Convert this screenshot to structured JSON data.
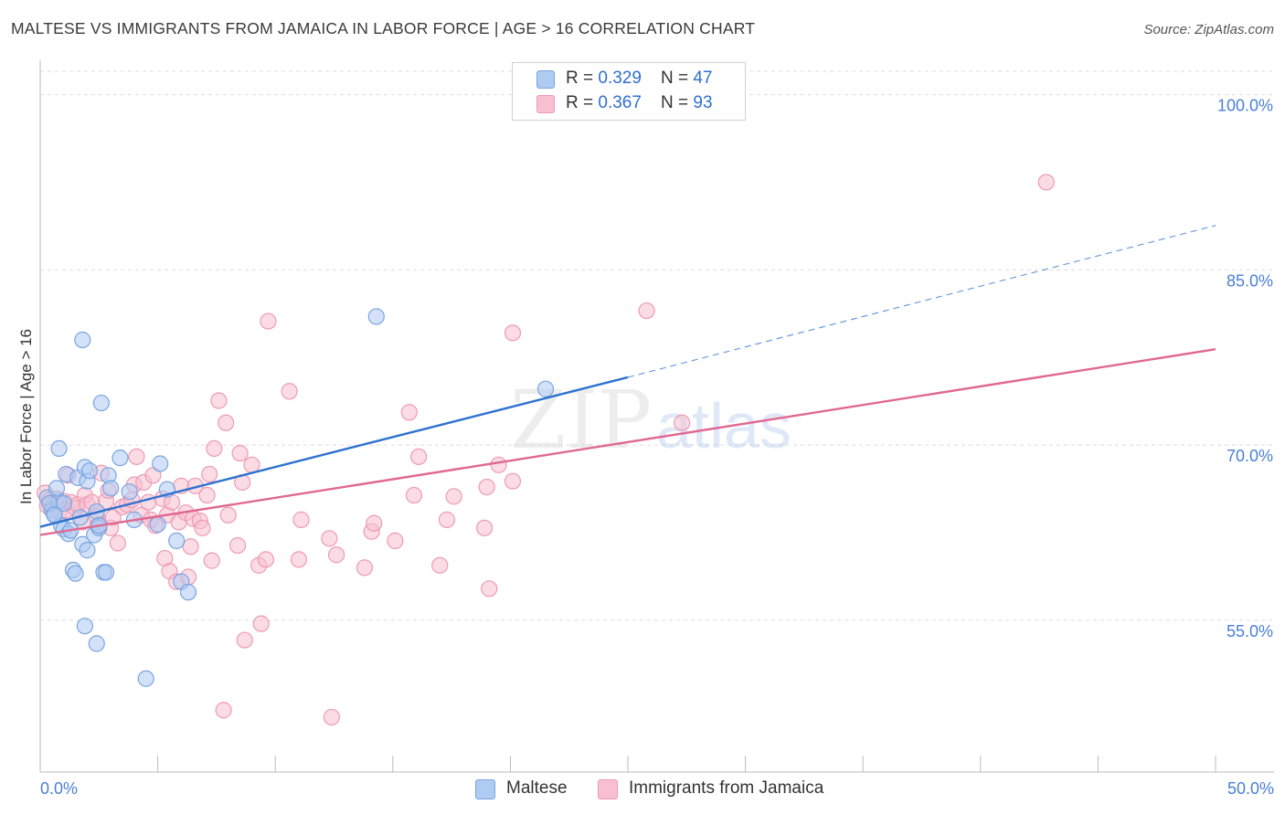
{
  "header": {
    "title": "MALTESE VS IMMIGRANTS FROM JAMAICA IN LABOR FORCE | AGE > 16 CORRELATION CHART",
    "source": "Source: ZipAtlas.com"
  },
  "legend": {
    "maltese": {
      "r_label": "R = ",
      "r_value": "0.329",
      "n_label": "N = ",
      "n_value": "47"
    },
    "jamaica": {
      "r_label": "R = ",
      "r_value": "0.367",
      "n_label": "N = ",
      "n_value": "93"
    }
  },
  "bottom_legend": {
    "maltese": "Maltese",
    "jamaica": "Immigrants from Jamaica"
  },
  "watermark": {
    "zip": "ZIP",
    "atlas": "atlas"
  },
  "colors": {
    "maltese_fill": "#aecbf2",
    "maltese_stroke": "#7aa5e0",
    "maltese_line": "#2f72d0",
    "jamaica_fill": "#f7bfd0",
    "jamaica_stroke": "#ee9ab3",
    "jamaica_line": "#e06890",
    "tick_label": "#4a7fd6",
    "grid": "#dddddd"
  },
  "chart_data": {
    "type": "scatter",
    "title": "MALTESE VS IMMIGRANTS FROM JAMAICA IN LABOR FORCE | AGE > 16 CORRELATION CHART",
    "xlabel": "",
    "ylabel": "In Labor Force | Age > 16",
    "xlim": [
      0,
      50
    ],
    "ylim": [
      42,
      102
    ],
    "x_tick_labels": [
      "0.0%",
      "50.0%"
    ],
    "y_ticks": [
      55,
      70,
      85,
      100
    ],
    "y_tick_labels": [
      "55.0%",
      "70.0%",
      "85.0%",
      "100.0%"
    ],
    "grid": true,
    "legend_position": "top-center",
    "series": [
      {
        "name": "Maltese",
        "R": 0.329,
        "N": 47,
        "trend": {
          "x0": 0,
          "y0": 63.0,
          "x1": 25,
          "y1": 75.8,
          "dashed_to_x": 50,
          "dashed_to_y": 88.8
        },
        "points": [
          [
            0.3,
            65.5
          ],
          [
            0.5,
            64.4
          ],
          [
            0.6,
            64.1
          ],
          [
            0.8,
            65.2
          ],
          [
            0.4,
            65.0
          ],
          [
            0.7,
            66.3
          ],
          [
            0.9,
            63.1
          ],
          [
            1.0,
            62.8
          ],
          [
            1.1,
            67.5
          ],
          [
            1.2,
            62.4
          ],
          [
            1.3,
            62.7
          ],
          [
            1.4,
            59.3
          ],
          [
            1.5,
            59.0
          ],
          [
            0.8,
            69.7
          ],
          [
            1.6,
            67.2
          ],
          [
            1.8,
            61.5
          ],
          [
            1.7,
            63.8
          ],
          [
            1.8,
            79.0
          ],
          [
            1.9,
            68.1
          ],
          [
            2.0,
            66.9
          ],
          [
            2.1,
            67.8
          ],
          [
            2.0,
            61.0
          ],
          [
            2.3,
            62.3
          ],
          [
            2.5,
            62.9
          ],
          [
            2.4,
            64.3
          ],
          [
            2.6,
            73.6
          ],
          [
            2.7,
            59.1
          ],
          [
            2.8,
            59.1
          ],
          [
            2.9,
            67.4
          ],
          [
            3.0,
            66.3
          ],
          [
            3.4,
            68.9
          ],
          [
            1.9,
            54.5
          ],
          [
            2.4,
            53.0
          ],
          [
            3.8,
            66.0
          ],
          [
            4.0,
            63.6
          ],
          [
            4.5,
            50.0
          ],
          [
            5.0,
            63.2
          ],
          [
            5.1,
            68.4
          ],
          [
            5.4,
            66.2
          ],
          [
            5.8,
            61.8
          ],
          [
            6.0,
            58.3
          ],
          [
            6.3,
            57.4
          ],
          [
            2.5,
            63.1
          ],
          [
            1.0,
            65.0
          ],
          [
            0.6,
            64.0
          ],
          [
            14.3,
            81.0
          ],
          [
            21.5,
            74.8
          ]
        ]
      },
      {
        "name": "Immigrants from Jamaica",
        "R": 0.367,
        "N": 93,
        "trend": {
          "x0": 0,
          "y0": 62.3,
          "x1": 50,
          "y1": 78.2
        },
        "points": [
          [
            0.2,
            65.9
          ],
          [
            0.3,
            64.8
          ],
          [
            0.4,
            65.3
          ],
          [
            0.5,
            64.6
          ],
          [
            0.6,
            64.9
          ],
          [
            0.7,
            65.4
          ],
          [
            0.8,
            64.2
          ],
          [
            1.0,
            65.2
          ],
          [
            1.1,
            64.4
          ],
          [
            1.2,
            67.4
          ],
          [
            1.3,
            65.1
          ],
          [
            1.5,
            64.6
          ],
          [
            1.6,
            64.9
          ],
          [
            1.8,
            63.4
          ],
          [
            1.9,
            65.7
          ],
          [
            2.0,
            64.9
          ],
          [
            2.2,
            65.1
          ],
          [
            2.4,
            63.9
          ],
          [
            2.5,
            63.2
          ],
          [
            2.6,
            67.6
          ],
          [
            2.8,
            65.2
          ],
          [
            2.9,
            66.1
          ],
          [
            3.0,
            62.9
          ],
          [
            3.1,
            63.8
          ],
          [
            3.3,
            61.6
          ],
          [
            3.5,
            64.7
          ],
          [
            3.7,
            64.9
          ],
          [
            3.9,
            65.3
          ],
          [
            4.0,
            66.6
          ],
          [
            4.1,
            69.0
          ],
          [
            4.3,
            64.0
          ],
          [
            4.4,
            66.8
          ],
          [
            4.6,
            65.1
          ],
          [
            4.7,
            63.6
          ],
          [
            4.8,
            67.4
          ],
          [
            4.9,
            63.1
          ],
          [
            5.2,
            65.4
          ],
          [
            5.4,
            64.0
          ],
          [
            5.3,
            60.3
          ],
          [
            5.5,
            59.2
          ],
          [
            5.6,
            65.1
          ],
          [
            5.8,
            58.3
          ],
          [
            5.9,
            63.4
          ],
          [
            6.0,
            66.5
          ],
          [
            6.2,
            64.2
          ],
          [
            6.3,
            58.7
          ],
          [
            6.4,
            61.3
          ],
          [
            6.5,
            63.7
          ],
          [
            6.6,
            66.5
          ],
          [
            6.8,
            63.5
          ],
          [
            6.9,
            62.9
          ],
          [
            7.1,
            65.7
          ],
          [
            7.2,
            67.5
          ],
          [
            7.3,
            60.1
          ],
          [
            7.4,
            69.7
          ],
          [
            7.6,
            73.8
          ],
          [
            7.9,
            71.9
          ],
          [
            8.0,
            64.0
          ],
          [
            8.4,
            61.4
          ],
          [
            8.5,
            69.3
          ],
          [
            8.6,
            66.8
          ],
          [
            9.0,
            68.3
          ],
          [
            9.3,
            59.7
          ],
          [
            9.6,
            60.2
          ],
          [
            9.4,
            54.7
          ],
          [
            8.7,
            53.3
          ],
          [
            7.8,
            47.3
          ],
          [
            9.7,
            80.6
          ],
          [
            10.6,
            74.6
          ],
          [
            11.0,
            60.2
          ],
          [
            11.1,
            63.6
          ],
          [
            12.3,
            62.0
          ],
          [
            12.6,
            60.6
          ],
          [
            12.4,
            46.7
          ],
          [
            13.8,
            59.5
          ],
          [
            14.1,
            62.6
          ],
          [
            14.2,
            63.3
          ],
          [
            15.1,
            61.8
          ],
          [
            15.9,
            65.7
          ],
          [
            15.7,
            72.8
          ],
          [
            16.1,
            69.0
          ],
          [
            17.0,
            59.7
          ],
          [
            17.3,
            63.6
          ],
          [
            17.6,
            65.6
          ],
          [
            18.9,
            62.9
          ],
          [
            19.0,
            66.4
          ],
          [
            19.1,
            57.7
          ],
          [
            19.5,
            68.3
          ],
          [
            20.1,
            66.9
          ],
          [
            20.1,
            79.6
          ],
          [
            25.8,
            81.5
          ],
          [
            27.3,
            71.9
          ],
          [
            42.8,
            92.5
          ]
        ]
      }
    ]
  }
}
